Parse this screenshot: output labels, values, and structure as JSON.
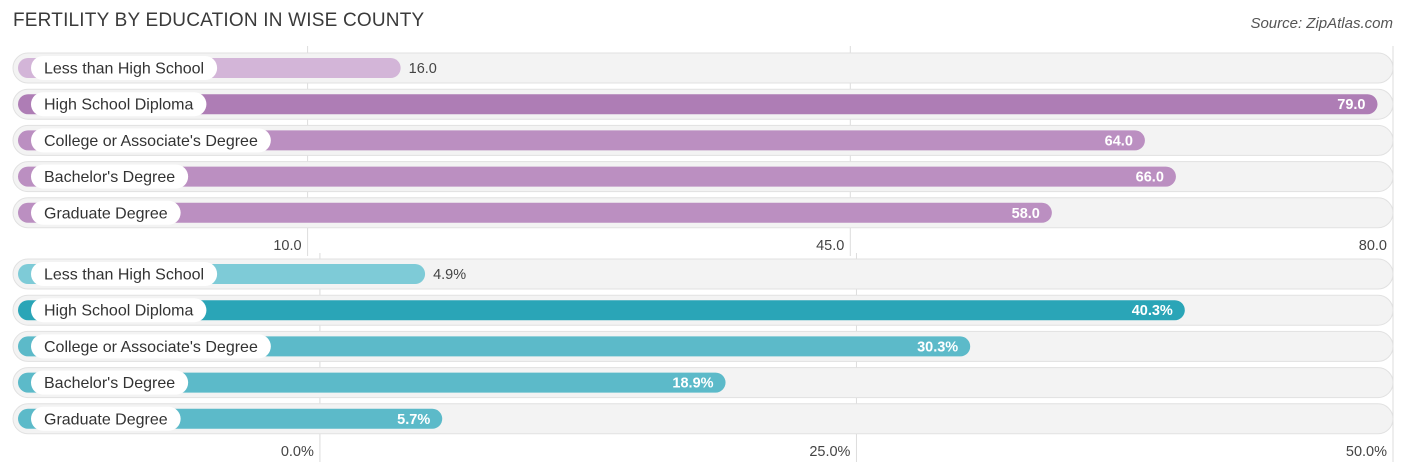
{
  "header": {
    "title": "FERTILITY BY EDUCATION IN WISE COUNTY",
    "source": "Source: ZipAtlas.com"
  },
  "chart_data": [
    {
      "type": "bar",
      "orientation": "horizontal",
      "categories": [
        "Less than High School",
        "High School Diploma",
        "College or Associate's Degree",
        "Bachelor's Degree",
        "Graduate Degree"
      ],
      "values": [
        16.0,
        79.0,
        64.0,
        66.0,
        58.0
      ],
      "value_labels": [
        "16.0",
        "79.0",
        "64.0",
        "66.0",
        "58.0"
      ],
      "xlim": [
        -9.0,
        80.0
      ],
      "ticks": [
        10.0,
        45.0,
        80.0
      ],
      "tick_labels": [
        "10.0",
        "45.0",
        "80.0"
      ],
      "grid": true,
      "colors": {
        "max": "#ae7db5",
        "other": "#bb8fc1",
        "light": "#d3b5d8"
      }
    },
    {
      "type": "bar",
      "orientation": "horizontal",
      "categories": [
        "Less than High School",
        "High School Diploma",
        "College or Associate's Degree",
        "Bachelor's Degree",
        "Graduate Degree"
      ],
      "values": [
        4.9,
        40.3,
        30.3,
        18.9,
        5.7
      ],
      "value_labels": [
        "4.9%",
        "40.3%",
        "30.3%",
        "18.9%",
        "5.7%"
      ],
      "xlim": [
        -14.3,
        50.0
      ],
      "ticks": [
        0.0,
        25.0,
        50.0
      ],
      "tick_labels": [
        "0.0%",
        "25.0%",
        "50.0%"
      ],
      "grid": true,
      "colors": {
        "max": "#2aa5b7",
        "other": "#5cbac9",
        "light": "#7ecbd7"
      }
    }
  ]
}
